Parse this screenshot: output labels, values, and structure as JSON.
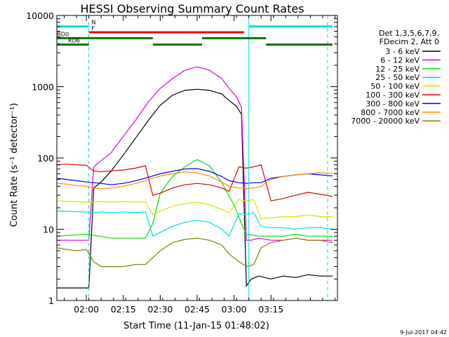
{
  "chart_data": {
    "type": "line",
    "title": "HESSI Observing Summary Count Rates",
    "xlabel": "Start Time (11-Jan-15 01:48:02)",
    "ylabel": "Count Rate (s⁻¹ detector⁻¹)",
    "footer": "9-Jul-2017 04:42",
    "yscale": "log",
    "xlim": [
      108,
      222
    ],
    "ylim": [
      1,
      10000
    ],
    "x_ticks": [
      {
        "x": 120,
        "label": "02:00"
      },
      {
        "x": 135,
        "label": "02:15"
      },
      {
        "x": 150,
        "label": "02:30"
      },
      {
        "x": 165,
        "label": "02:45"
      },
      {
        "x": 180,
        "label": "03:00"
      },
      {
        "x": 195,
        "label": "03:15"
      }
    ],
    "y_ticks": [
      {
        "y": 1,
        "label": "1"
      },
      {
        "y": 10,
        "label": "10"
      },
      {
        "y": 100,
        "label": "100"
      },
      {
        "y": 1000,
        "label": "1000"
      },
      {
        "y": 10000,
        "label": "10000"
      }
    ],
    "legend": {
      "header": [
        "Det 1,3,5,6,7,9,",
        "FDecim 2, Att 0"
      ],
      "placement": "right"
    },
    "series": [
      {
        "name": "3 - 6 keV",
        "color": "#000000",
        "x": [
          108,
          121,
          123,
          126,
          130,
          135,
          140,
          145,
          150,
          155,
          160,
          165,
          170,
          175,
          178,
          181,
          183,
          185,
          187,
          190,
          195,
          200,
          205,
          210,
          215,
          220
        ],
        "values": [
          1.5,
          1.5,
          38,
          46,
          65,
          110,
          190,
          330,
          550,
          760,
          890,
          920,
          890,
          790,
          640,
          530,
          410,
          1.6,
          2.0,
          2.2,
          2.0,
          2.2,
          2.1,
          2.3,
          2.2,
          2.2
        ]
      },
      {
        "name": "6 - 12 keV",
        "color": "#dd00dd",
        "x": [
          108,
          121,
          123,
          126,
          130,
          135,
          140,
          145,
          150,
          155,
          160,
          165,
          170,
          175,
          178,
          181,
          183,
          185,
          187,
          190,
          195,
          200,
          205,
          210,
          215,
          220
        ],
        "values": [
          7,
          7,
          75,
          92,
          118,
          200,
          340,
          600,
          950,
          1300,
          1700,
          1900,
          1700,
          1300,
          950,
          720,
          520,
          7,
          7,
          7.5,
          7,
          7,
          7.5,
          7,
          7,
          7
        ]
      },
      {
        "name": "12 - 25 keV",
        "color": "#00dd00",
        "x": [
          108,
          120,
          125,
          130,
          135,
          140,
          144,
          147,
          150,
          155,
          160,
          165,
          170,
          175,
          180,
          183,
          185,
          190,
          195,
          200,
          205,
          210,
          215,
          220
        ],
        "values": [
          8,
          8.5,
          8,
          7.5,
          7.5,
          7.5,
          7.5,
          12,
          32,
          55,
          75,
          95,
          78,
          45,
          22,
          12,
          8.5,
          8,
          8,
          8,
          8.5,
          8,
          8,
          8
        ]
      },
      {
        "name": "25 - 50 keV",
        "color": "#00dddd",
        "x": [
          108,
          120,
          123,
          126,
          130,
          135,
          140,
          144,
          147,
          150,
          155,
          160,
          165,
          170,
          175,
          178,
          182,
          185,
          188,
          191,
          195,
          200,
          205,
          210,
          215,
          220
        ],
        "values": [
          18,
          17.5,
          17,
          17.5,
          17,
          17.5,
          17,
          17.5,
          8,
          9,
          11,
          12.5,
          13.5,
          12.5,
          10,
          8,
          16.5,
          16,
          17,
          11,
          10.5,
          10.5,
          10,
          10.5,
          10.5,
          10
        ]
      },
      {
        "name": "50 - 100 keV",
        "color": "#dddd00",
        "x": [
          108,
          120,
          123,
          126,
          130,
          135,
          140,
          144,
          147,
          150,
          155,
          160,
          165,
          170,
          175,
          178,
          182,
          185,
          188,
          191,
          195,
          200,
          205,
          210,
          215,
          220
        ],
        "values": [
          25,
          24,
          24,
          24.5,
          24,
          24.5,
          24,
          24.5,
          16,
          18,
          21,
          23,
          24,
          22,
          19,
          17,
          26,
          25,
          26,
          14,
          14.5,
          15,
          15,
          16,
          15,
          15
        ]
      },
      {
        "name": "100 - 300 keV",
        "color": "#dd0000",
        "x": [
          108,
          112,
          116,
          120,
          123,
          126,
          130,
          135,
          140,
          144,
          147,
          150,
          155,
          160,
          165,
          170,
          175,
          178,
          182,
          185,
          188,
          191,
          195,
          200,
          205,
          210,
          215,
          220
        ],
        "values": [
          80,
          82,
          80,
          79,
          66,
          64,
          66,
          68,
          72,
          78,
          30,
          32,
          38,
          42,
          44,
          42,
          38,
          34,
          75,
          72,
          75,
          80,
          25,
          27,
          30,
          33,
          31,
          29
        ]
      },
      {
        "name": "300 - 800 keV",
        "color": "#0000dd",
        "x": [
          108,
          112,
          116,
          120,
          123,
          126,
          130,
          135,
          140,
          144,
          147,
          150,
          155,
          160,
          165,
          170,
          175,
          178,
          182,
          185,
          188,
          191,
          195,
          200,
          205,
          210,
          215,
          220
        ],
        "values": [
          52,
          50,
          48,
          46,
          45,
          44,
          42,
          44,
          48,
          52,
          56,
          60,
          65,
          70,
          71,
          65,
          55,
          48,
          45,
          44,
          45,
          45,
          52,
          55,
          58,
          60,
          58,
          56
        ]
      },
      {
        "name": "800 - 7000 keV",
        "color": "#ff8800",
        "x": [
          108,
          112,
          116,
          120,
          123,
          126,
          130,
          135,
          140,
          144,
          147,
          150,
          155,
          160,
          165,
          170,
          175,
          178,
          182,
          185,
          188,
          191,
          195,
          200,
          205,
          210,
          215,
          220
        ],
        "values": [
          44,
          43,
          41,
          40,
          38,
          37,
          38,
          40,
          44,
          48,
          52,
          56,
          60,
          64,
          62,
          56,
          46,
          40,
          38,
          37,
          38,
          40,
          50,
          55,
          58,
          60,
          62,
          61
        ]
      },
      {
        "name": "7000 - 20000 keV",
        "color": "#808000",
        "x": [
          108,
          112,
          116,
          120,
          123,
          126,
          130,
          135,
          140,
          144,
          147,
          150,
          155,
          160,
          165,
          170,
          175,
          178,
          182,
          185,
          188,
          191,
          195,
          200,
          205,
          210,
          215,
          220
        ],
        "values": [
          5.5,
          5.2,
          5,
          5.2,
          3.5,
          3,
          3,
          3,
          3.2,
          3.2,
          4,
          5,
          6.5,
          7.2,
          7.5,
          7,
          6,
          4.5,
          3.5,
          3,
          3.2,
          5.5,
          6.5,
          7,
          7.5,
          7,
          7,
          6.5
        ]
      }
    ],
    "state_bars": [
      {
        "label": "N",
        "color": "#00dddd",
        "y": 7000,
        "label_x": 121.5,
        "segments": [
          [
            108,
            121
          ],
          [
            186,
            220
          ]
        ]
      },
      {
        "label": "F",
        "color": "#ee0000",
        "y": 5800,
        "label_x": 121.5,
        "segments": [
          [
            121,
            184
          ]
        ]
      },
      {
        "label": "RD0",
        "color": "#007700",
        "y": 4800,
        "label_x": 107.5,
        "segments": [
          [
            108,
            147
          ],
          [
            167,
            193
          ]
        ]
      },
      {
        "label": "RD6",
        "color": "#007700",
        "y": 3900,
        "label_x": 112,
        "segments": [
          [
            108,
            121
          ],
          [
            147,
            167
          ],
          [
            193,
            220
          ]
        ]
      }
    ],
    "vlines": [
      {
        "x": 108,
        "color": "#00dddd",
        "style": "solid"
      },
      {
        "x": 121,
        "color": "#00dddd",
        "style": "dashed"
      },
      {
        "x": 186,
        "color": "#00dddd",
        "style": "solid"
      },
      {
        "x": 218,
        "color": "#00dddd",
        "style": "dashed"
      }
    ]
  }
}
